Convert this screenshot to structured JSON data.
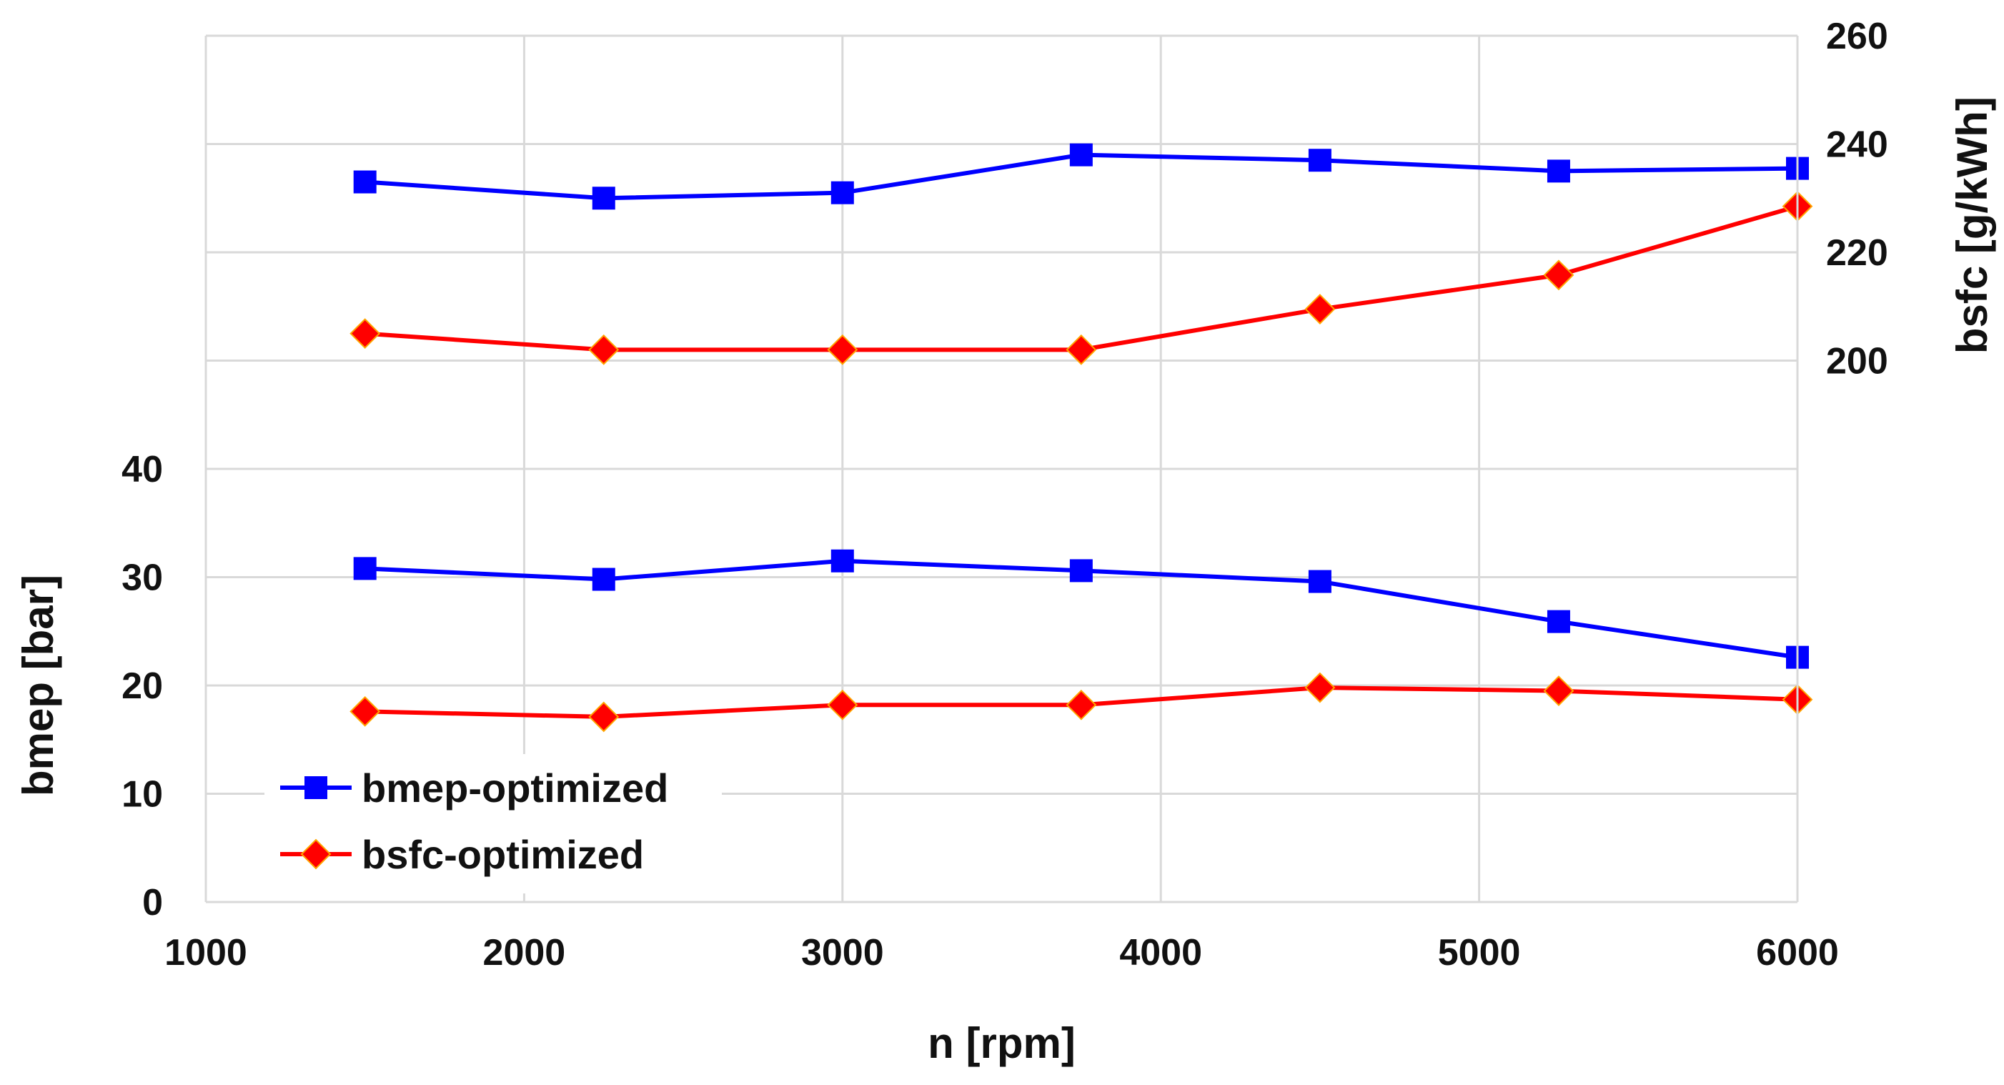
{
  "chart_data": {
    "type": "line",
    "title": "",
    "xlabel": "n [rpm]",
    "ylabel_left": "bmep [bar]",
    "ylabel_right": "bsfc [g/kWh]",
    "xlim": [
      1000,
      6000
    ],
    "x_ticks": [
      1000,
      2000,
      3000,
      4000,
      5000,
      6000
    ],
    "ylim_left": [
      0,
      80
    ],
    "y_left_ticks": [
      0,
      10,
      20,
      30,
      40
    ],
    "ylim_right": [
      100,
      260
    ],
    "y_right_ticks": [
      200,
      220,
      240,
      260
    ],
    "grid": true,
    "legend_position": "bottom-left",
    "x": [
      1500,
      2250,
      3000,
      3750,
      4500,
      5250,
      6000
    ],
    "series": [
      {
        "name": "bmep-optimized",
        "axis": "left",
        "metric": "bmep",
        "color": "#0000ff",
        "marker": "square",
        "values": [
          30.8,
          29.8,
          31.5,
          30.6,
          29.6,
          25.9,
          22.6
        ]
      },
      {
        "name": "bsfc-optimized",
        "axis": "left",
        "metric": "bmep",
        "color": "#ff0000",
        "marker": "diamond",
        "values": [
          17.6,
          17.1,
          18.2,
          18.2,
          19.8,
          19.5,
          18.7
        ]
      },
      {
        "name": "bmep-optimized",
        "axis": "right",
        "metric": "bsfc",
        "color": "#0000ff",
        "marker": "square",
        "values": [
          233,
          230,
          231,
          238,
          237,
          235,
          235.5
        ]
      },
      {
        "name": "bsfc-optimized",
        "axis": "right",
        "metric": "bsfc",
        "color": "#ff0000",
        "marker": "diamond",
        "values": [
          205,
          202,
          202,
          202,
          209.5,
          215.8,
          228.5
        ]
      }
    ],
    "legend": [
      {
        "label": "bmep-optimized",
        "color": "#0000ff",
        "marker": "square"
      },
      {
        "label": "bsfc-optimized",
        "color": "#ff0000",
        "marker": "diamond"
      }
    ]
  }
}
